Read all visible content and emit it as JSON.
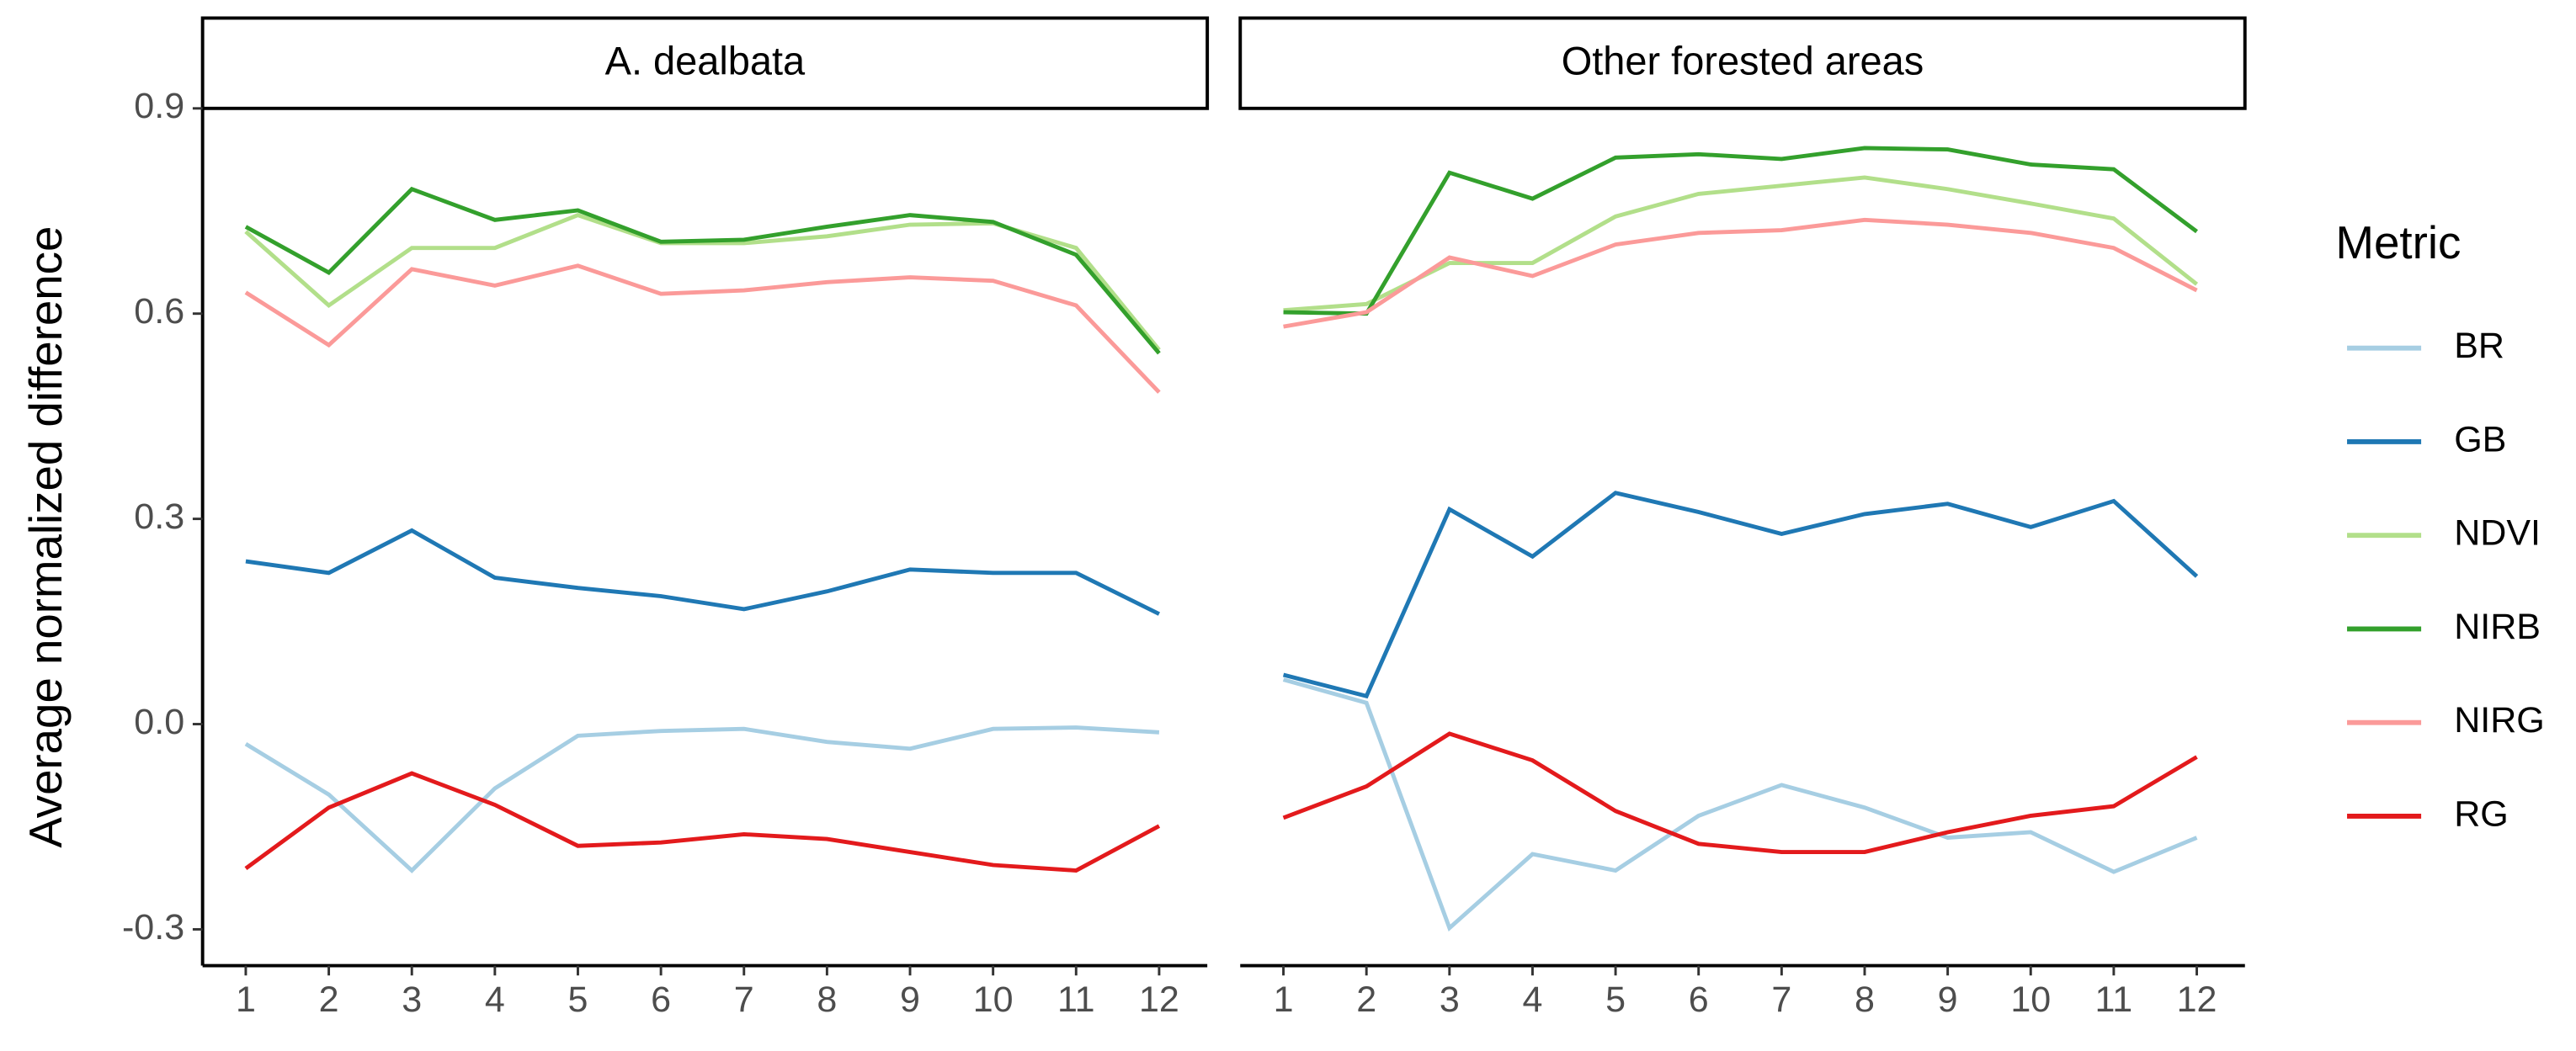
{
  "chart_data": [
    {
      "type": "line",
      "title": "A. dealbata",
      "y_label": "Average normalized difference",
      "legend_title": "Metric",
      "x": [
        1,
        2,
        3,
        4,
        5,
        6,
        7,
        8,
        9,
        10,
        11,
        12
      ],
      "xlim": [
        0.48,
        12.58
      ],
      "xticks": [
        1,
        2,
        3,
        4,
        5,
        6,
        7,
        8,
        9,
        10,
        11,
        12
      ],
      "ylim": [
        -0.353,
        0.9
      ],
      "yticks": [
        -0.3,
        0.0,
        0.3,
        0.6,
        0.9
      ],
      "series": [
        {
          "name": "BR",
          "color": "#a6cee3",
          "values": [
            -0.029,
            -0.103,
            -0.214,
            -0.094,
            -0.017,
            -0.01,
            -0.007,
            -0.026,
            -0.036,
            -0.007,
            -0.005,
            -0.012
          ]
        },
        {
          "name": "GB",
          "color": "#1f78b4",
          "values": [
            0.238,
            0.221,
            0.283,
            0.214,
            0.199,
            0.187,
            0.168,
            0.194,
            0.226,
            0.221,
            0.221,
            0.161
          ]
        },
        {
          "name": "NDVI",
          "color": "#b2df8a",
          "values": [
            0.72,
            0.612,
            0.696,
            0.696,
            0.744,
            0.703,
            0.703,
            0.713,
            0.73,
            0.732,
            0.696,
            0.547
          ]
        },
        {
          "name": "NIRB",
          "color": "#33a02c",
          "values": [
            0.727,
            0.66,
            0.782,
            0.737,
            0.751,
            0.705,
            0.708,
            0.727,
            0.744,
            0.734,
            0.686,
            0.542
          ]
        },
        {
          "name": "NIRG",
          "color": "#fb9a99",
          "values": [
            0.631,
            0.554,
            0.665,
            0.641,
            0.67,
            0.629,
            0.634,
            0.646,
            0.653,
            0.648,
            0.612,
            0.485
          ]
        },
        {
          "name": "RG",
          "color": "#e31a1c",
          "values": [
            -0.211,
            -0.122,
            -0.072,
            -0.118,
            -0.178,
            -0.173,
            -0.161,
            -0.168,
            -0.187,
            -0.206,
            -0.214,
            -0.149
          ]
        }
      ]
    },
    {
      "type": "line",
      "title": "Other forested areas",
      "x": [
        1,
        2,
        3,
        4,
        5,
        6,
        7,
        8,
        9,
        10,
        11,
        12
      ],
      "xlim": [
        0.48,
        12.58
      ],
      "xticks": [
        1,
        2,
        3,
        4,
        5,
        6,
        7,
        8,
        9,
        10,
        11,
        12
      ],
      "ylim": [
        -0.353,
        0.9
      ],
      "series": [
        {
          "name": "BR",
          "color": "#a6cee3",
          "values": [
            0.065,
            0.031,
            -0.298,
            -0.19,
            -0.214,
            -0.134,
            -0.089,
            -0.122,
            -0.166,
            -0.158,
            -0.216,
            -0.166
          ]
        },
        {
          "name": "GB",
          "color": "#1f78b4",
          "values": [
            0.072,
            0.041,
            0.314,
            0.245,
            0.338,
            0.31,
            0.278,
            0.307,
            0.322,
            0.288,
            0.326,
            0.216
          ]
        },
        {
          "name": "NDVI",
          "color": "#b2df8a",
          "values": [
            0.605,
            0.614,
            0.674,
            0.674,
            0.742,
            0.775,
            0.787,
            0.799,
            0.782,
            0.761,
            0.739,
            0.643
          ]
        },
        {
          "name": "NIRB",
          "color": "#33a02c",
          "values": [
            0.602,
            0.6,
            0.806,
            0.768,
            0.828,
            0.833,
            0.826,
            0.842,
            0.84,
            0.818,
            0.811,
            0.72
          ]
        },
        {
          "name": "NIRG",
          "color": "#fb9a99",
          "values": [
            0.581,
            0.602,
            0.682,
            0.655,
            0.701,
            0.718,
            0.722,
            0.737,
            0.73,
            0.718,
            0.696,
            0.634
          ]
        },
        {
          "name": "RG",
          "color": "#e31a1c",
          "values": [
            -0.137,
            -0.091,
            -0.014,
            -0.053,
            -0.127,
            -0.175,
            -0.187,
            -0.187,
            -0.158,
            -0.134,
            -0.12,
            -0.048
          ]
        }
      ]
    }
  ]
}
